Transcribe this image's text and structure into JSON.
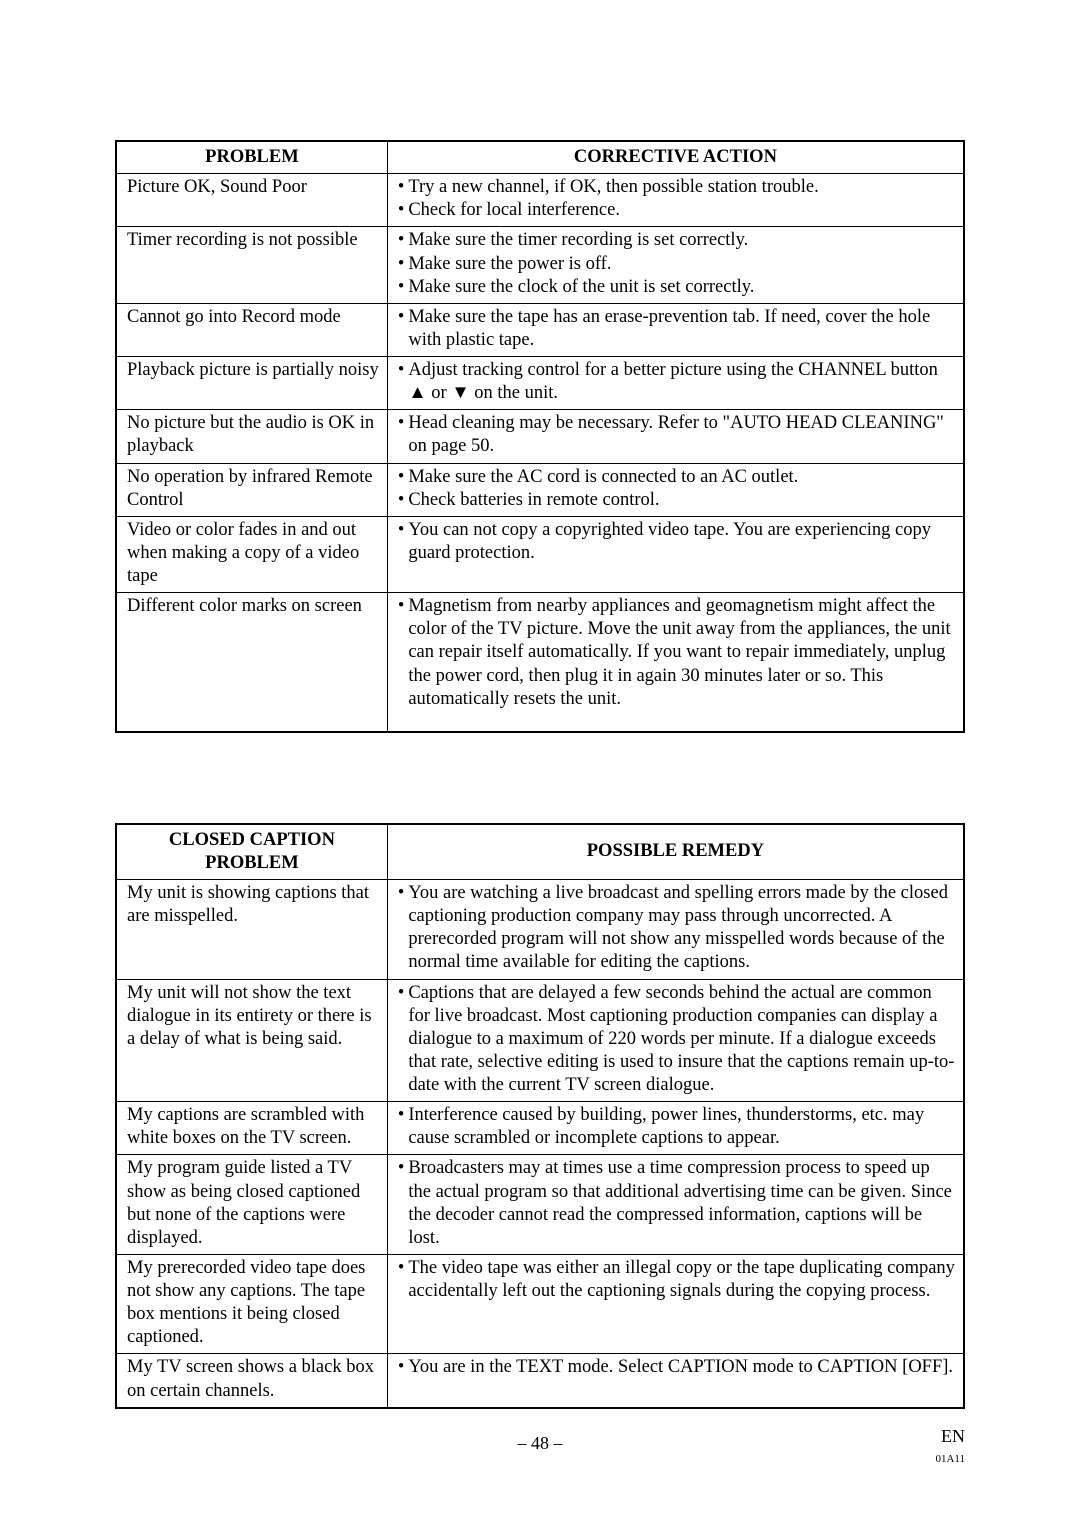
{
  "table1": {
    "headers": [
      "PROBLEM",
      "CORRECTIVE ACTION"
    ],
    "rows": [
      {
        "problem": "Picture OK, Sound Poor",
        "actions": [
          "Try a new channel, if OK, then possible station trouble.",
          "Check for local interference."
        ]
      },
      {
        "problem": "Timer recording is not possible",
        "actions": [
          "Make sure the timer recording is set correctly.",
          "Make sure the power is off.",
          "Make sure the clock of the unit is set correctly."
        ]
      },
      {
        "problem": "Cannot go into Record mode",
        "actions": [
          "Make sure the tape has an erase-prevention tab. If need, cover the hole with plastic tape."
        ]
      },
      {
        "problem": "Playback picture is partially noisy",
        "actions": [
          "Adjust tracking control for a better picture using the CHANNEL button ▲ or ▼ on the unit."
        ]
      },
      {
        "problem": "No picture but the audio is OK in playback",
        "actions": [
          "Head cleaning may be necessary. Refer to \"AUTO HEAD CLEANING\" on page 50."
        ]
      },
      {
        "problem": "No operation by infrared Remote Control",
        "actions": [
          "Make sure the AC cord is connected to an AC outlet.",
          "Check batteries in remote control."
        ]
      },
      {
        "problem": "Video or color fades in and out when making a copy of a video tape",
        "actions": [
          "You can not copy a copyrighted video tape. You are experiencing copy guard protection."
        ]
      },
      {
        "problem": "Different color marks on screen",
        "actions": [
          "Magnetism from nearby appliances and geomagnetism might affect the color of the TV picture. Move the unit away from the appliances, the unit can repair itself automatically. If you want to repair immediately, unplug the power cord, then plug it in again 30 minutes later or so. This automatically resets the unit."
        ],
        "last": true
      }
    ]
  },
  "table2": {
    "headers": [
      "CLOSED CAPTION PROBLEM",
      "POSSIBLE REMEDY"
    ],
    "rows": [
      {
        "problem": "My unit is showing captions that are misspelled.",
        "actions": [
          "You are watching a live broadcast and spelling errors made by the closed captioning production company may pass through uncorrected. A prerecorded program will not show any misspelled words because of the normal time available for editing the captions."
        ]
      },
      {
        "problem": "My unit will not show the text dialogue in its entirety or there is a delay of what is being said.",
        "actions": [
          "Captions that are delayed a few seconds behind the actual are common for live broadcast. Most captioning production companies can display a dialogue to a maximum of 220 words per minute. If a dialogue exceeds that rate, selective editing is used to insure that the captions remain up-to-date with the current TV screen dialogue."
        ]
      },
      {
        "problem": "My captions are scrambled with white boxes on the TV screen.",
        "actions": [
          "Interference caused by building, power lines, thunderstorms, etc. may cause scrambled or incomplete captions to appear."
        ]
      },
      {
        "problem": "My program guide listed a TV show as being closed captioned but none of the captions were displayed.",
        "actions": [
          "Broadcasters may at times use a time compression process to speed up the actual program so that additional advertising time can be given. Since the decoder cannot read the compressed information, captions will be lost."
        ]
      },
      {
        "problem": "My prerecorded video tape does not show any captions. The tape box mentions it being closed captioned.",
        "actions": [
          "The video tape was either an illegal copy or the tape duplicating company accidentally left out the captioning signals during the copying process."
        ]
      },
      {
        "problem": "My TV screen shows a black box on certain channels.",
        "actions": [
          "You are in the TEXT mode. Select CAPTION mode to CAPTION [OFF]."
        ]
      }
    ]
  },
  "footer": {
    "page": "– 48 –",
    "lang": "EN",
    "code": "01A11"
  }
}
